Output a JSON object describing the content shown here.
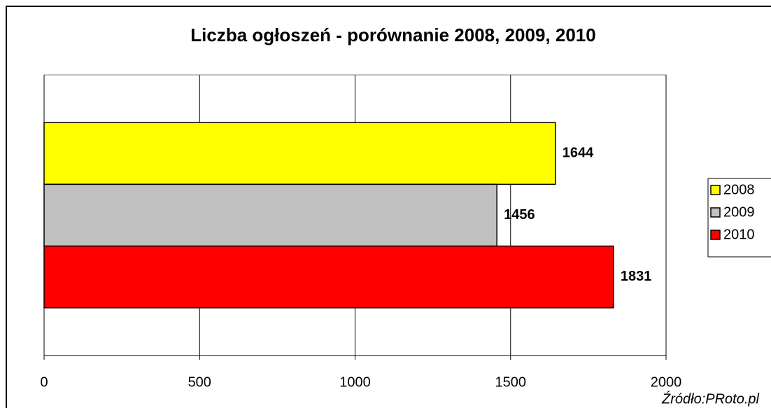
{
  "chart_data": {
    "type": "bar",
    "orientation": "horizontal",
    "title": "Liczba ogłoszeń - porównanie 2008, 2009, 2010",
    "source": "Źródło:PRoto.pl",
    "categories": [
      null
    ],
    "series": [
      {
        "name": "2008",
        "color": "#ffff00",
        "values": [
          1644
        ]
      },
      {
        "name": "2009",
        "color": "#c0c0c0",
        "values": [
          1456
        ]
      },
      {
        "name": "2010",
        "color": "#ff0000",
        "values": [
          1831
        ]
      }
    ],
    "xlim": [
      0,
      2000
    ],
    "xticks": [
      0,
      500,
      1000,
      1500,
      2000
    ],
    "grid": true,
    "legend": "right"
  }
}
